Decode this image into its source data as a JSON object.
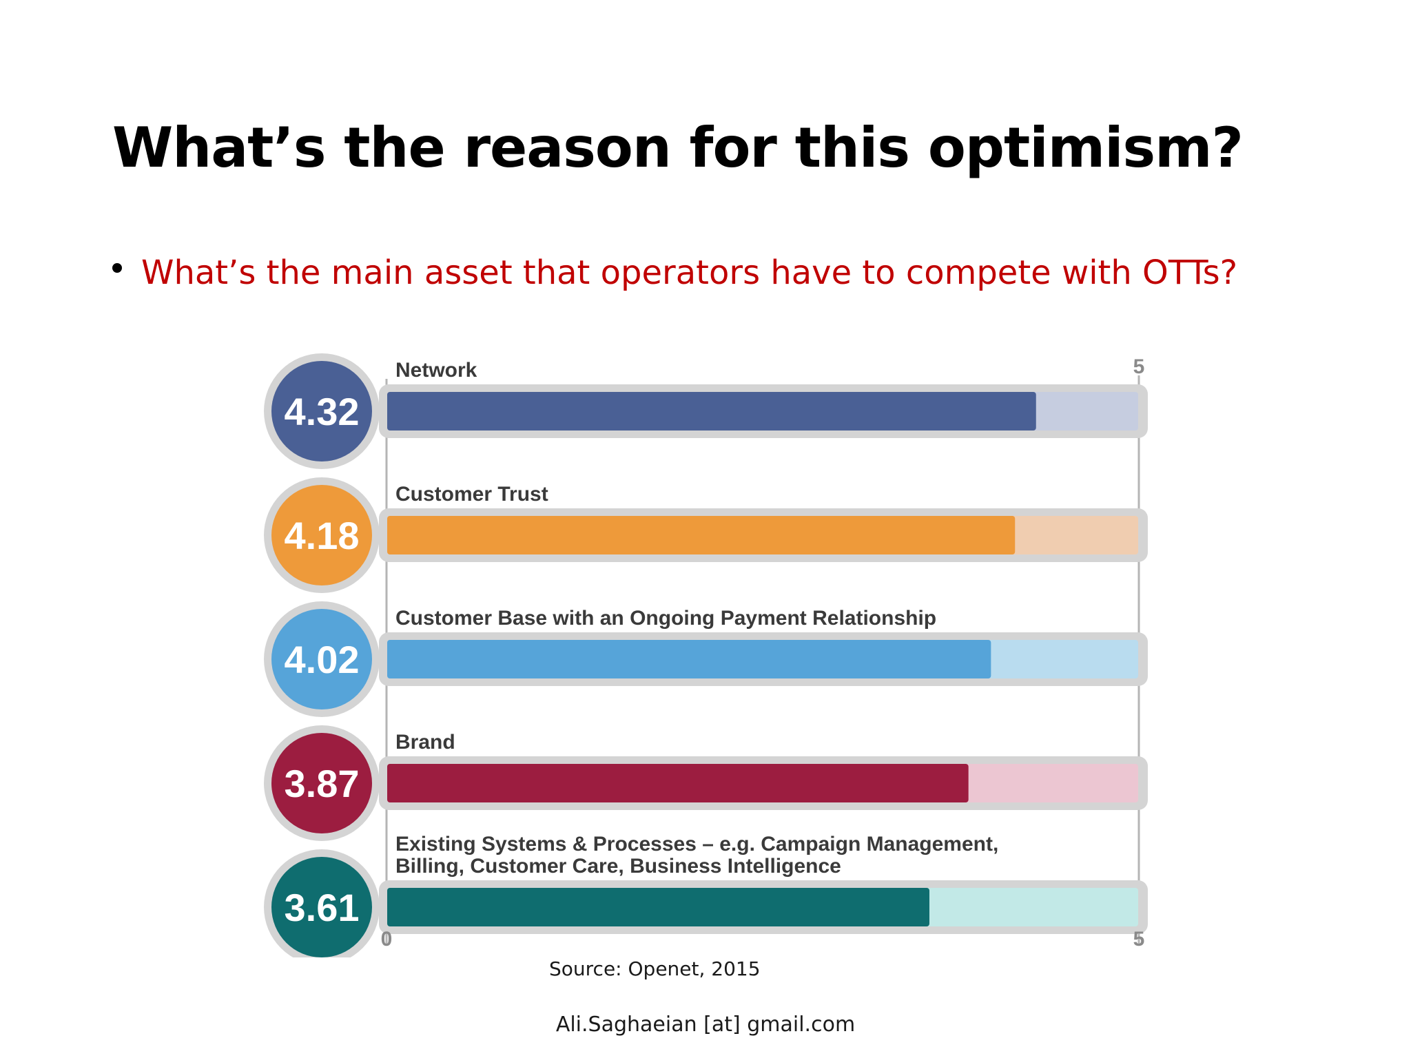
{
  "slide": {
    "title": "What’s the reason for this optimism?",
    "bullet": "What’s the main asset that operators have to compete with OTTs?",
    "source": "Source: Openet, 2015",
    "footer": "Ali.Saghaeian [at] gmail.com"
  },
  "chart_data": {
    "type": "bar",
    "orientation": "horizontal",
    "categories": [
      [
        "Network"
      ],
      [
        "Customer Trust"
      ],
      [
        "Customer Base with an Ongoing Payment Relationship"
      ],
      [
        "Brand"
      ],
      [
        "Existing Systems & Processes – e.g. Campaign Management,",
        "Billing, Customer Care, Business Intelligence"
      ]
    ],
    "values": [
      4.32,
      4.18,
      4.02,
      3.87,
      3.61
    ],
    "value_labels": [
      "4.32",
      "4.18",
      "4.02",
      "3.87",
      "3.61"
    ],
    "colors": [
      "#4a6095",
      "#ee9a3a",
      "#56a4d9",
      "#9c1d40",
      "#0f6d6f"
    ],
    "track_colors": [
      "#c6cde0",
      "#f0cdb0",
      "#b9dcef",
      "#ecc6d2",
      "#c2e9e7"
    ],
    "xlim": [
      0,
      5
    ],
    "tick_labels": {
      "min": "0",
      "max": "5",
      "top": "5"
    }
  }
}
